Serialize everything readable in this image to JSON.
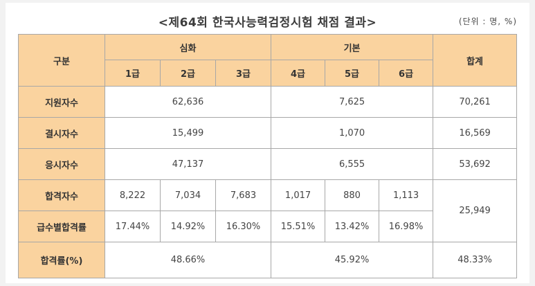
{
  "title": "<제64회 한국사능력검정시험 채점 결과>",
  "unit": "(단위 : 명, %)",
  "header": {
    "category": "구분",
    "advanced": "심화",
    "basic": "기본",
    "total": "합계",
    "grades": [
      "1급",
      "2급",
      "3급",
      "4급",
      "5급",
      "6급"
    ]
  },
  "rows": {
    "applicants": {
      "label": "지원자수",
      "advanced": "62,636",
      "basic": "7,625",
      "total": "70,261"
    },
    "absentees": {
      "label": "결시자수",
      "advanced": "15,499",
      "basic": "1,070",
      "total": "16,569"
    },
    "examinees": {
      "label": "응시자수",
      "advanced": "47,137",
      "basic": "6,555",
      "total": "53,692"
    },
    "passers": {
      "label": "합격자수",
      "grades": [
        "8,222",
        "7,034",
        "7,683",
        "1,017",
        "880",
        "1,113"
      ],
      "total": "25,949"
    },
    "grade_pass_rate": {
      "label": "급수별합격률",
      "grades": [
        "17.44%",
        "14.92%",
        "16.30%",
        "15.51%",
        "13.42%",
        "16.98%"
      ]
    },
    "pass_rate": {
      "label": "합격률(%)",
      "advanced": "48.66%",
      "basic": "45.92%",
      "total": "48.33%"
    }
  }
}
